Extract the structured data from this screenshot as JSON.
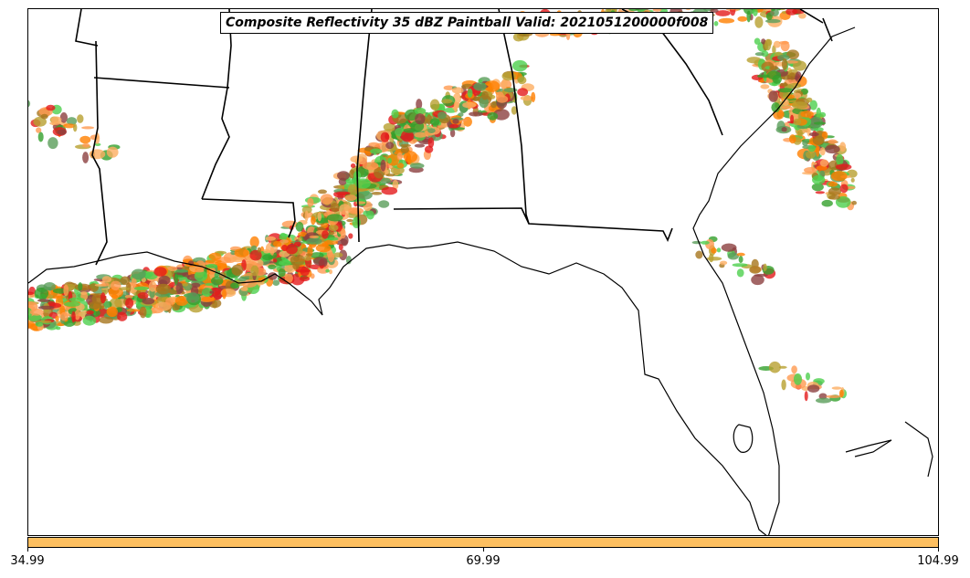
{
  "title": "Composite Reflectivity 35 dBZ Paintball Valid: 2021051200000f008",
  "colorbar": {
    "color": "#fdbf60",
    "ticks": [
      "34.99",
      "69.99",
      "104.99"
    ]
  },
  "map": {
    "region": "Southeastern United States",
    "member_colors": [
      "#ff7f00",
      "#e31a1c",
      "#33a02c",
      "#a6761d",
      "#5a9e5a",
      "#8c4040",
      "#fdae61",
      "#b8a030",
      "#4ecf4e",
      "#ff9a50"
    ]
  }
}
